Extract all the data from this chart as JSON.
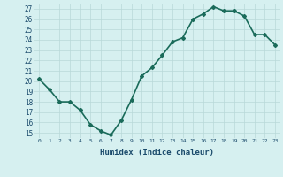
{
  "xlabel": "Humidex (Indice chaleur)",
  "x": [
    0,
    1,
    2,
    3,
    4,
    5,
    6,
    7,
    8,
    9,
    10,
    11,
    12,
    13,
    14,
    15,
    16,
    17,
    18,
    19,
    20,
    21,
    22,
    23
  ],
  "y": [
    20.2,
    19.2,
    18.0,
    18.0,
    17.2,
    15.8,
    15.2,
    14.8,
    16.2,
    18.2,
    20.5,
    21.3,
    22.5,
    23.8,
    24.2,
    26.0,
    26.5,
    27.2,
    26.8,
    26.8,
    26.3,
    24.5,
    24.5,
    23.5
  ],
  "ylim": [
    14.5,
    27.5
  ],
  "yticks": [
    15,
    16,
    17,
    18,
    19,
    20,
    21,
    22,
    23,
    24,
    25,
    26,
    27
  ],
  "xticks": [
    0,
    1,
    2,
    3,
    4,
    5,
    6,
    7,
    8,
    9,
    10,
    11,
    12,
    13,
    14,
    15,
    16,
    17,
    18,
    19,
    20,
    21,
    22,
    23
  ],
  "line_color": "#1a6b5a",
  "marker": "D",
  "marker_size": 2,
  "bg_color": "#d6f0f0",
  "grid_color": "#b8d8d8",
  "tick_label_color": "#1a4a6b",
  "axis_label_color": "#1a4a6b",
  "linewidth": 1.2
}
